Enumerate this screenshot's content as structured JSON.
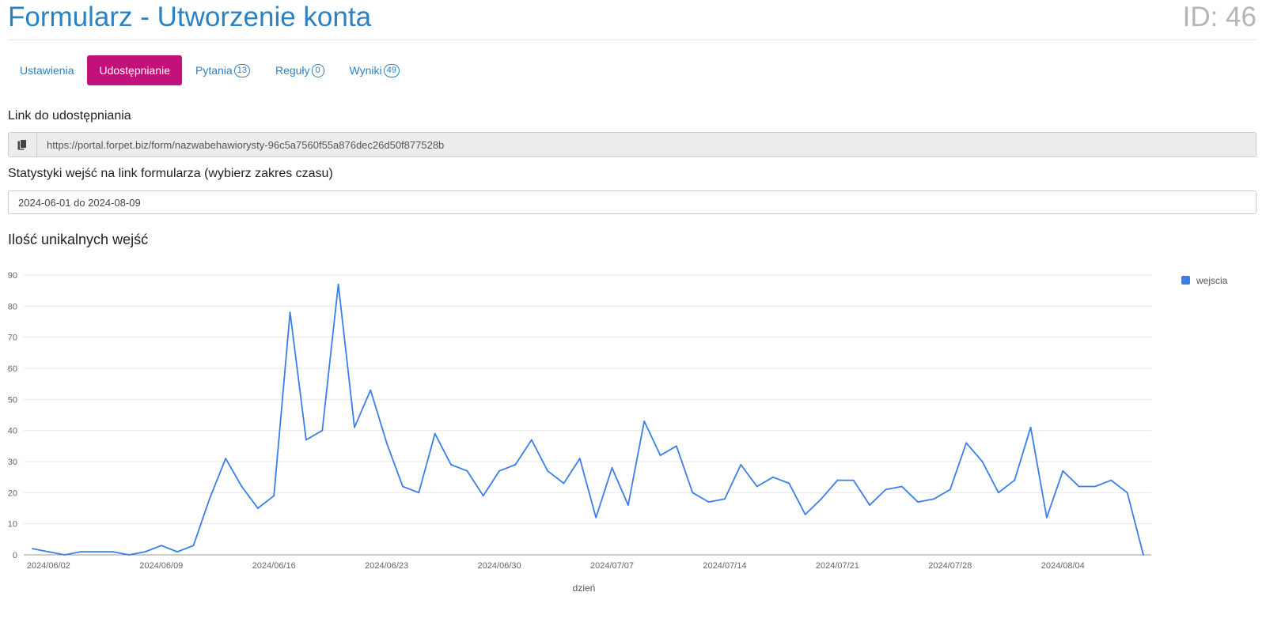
{
  "header": {
    "title": "Formularz - Utworzenie konta",
    "id_label": "ID: 46"
  },
  "tabs": [
    {
      "label": "Ustawienia",
      "badge": null,
      "active": false
    },
    {
      "label": "Udostępnianie",
      "badge": null,
      "active": true
    },
    {
      "label": "Pytania",
      "badge": "13",
      "active": false
    },
    {
      "label": "Reguły",
      "badge": "0",
      "active": false
    },
    {
      "label": "Wyniki",
      "badge": "49",
      "active": false
    }
  ],
  "share": {
    "label": "Link do udostępniania",
    "url": "https://portal.forpet.biz/form/nazwabehawiorysty-96c5a7560f55a876dec26d50f877528b",
    "copy_icon": "copy-icon"
  },
  "stats": {
    "label": "Statystyki wejść na link formularza (wybierz zakres czasu)",
    "date_range": "2024-06-01 do 2024-08-09"
  },
  "chart_title": "Ilość unikalnych wejść",
  "colors": {
    "accent": "#2a82c4",
    "active_tab": "#c2117a",
    "series": "#3a7ee8"
  },
  "chart_data": {
    "type": "line",
    "xlabel": "dzień",
    "ylabel": "",
    "ylim": [
      0,
      90
    ],
    "yticks": [
      0,
      10,
      20,
      30,
      40,
      50,
      60,
      70,
      80,
      90
    ],
    "xtick_labels": [
      "2024/06/02",
      "2024/06/09",
      "2024/06/16",
      "2024/06/23",
      "2024/06/30",
      "2024/07/07",
      "2024/07/14",
      "2024/07/21",
      "2024/07/28",
      "2024/08/04"
    ],
    "legend_position": "top-right",
    "grid": true,
    "x": [
      "2024-06-01",
      "2024-06-02",
      "2024-06-03",
      "2024-06-04",
      "2024-06-05",
      "2024-06-06",
      "2024-06-07",
      "2024-06-08",
      "2024-06-09",
      "2024-06-10",
      "2024-06-11",
      "2024-06-12",
      "2024-06-13",
      "2024-06-14",
      "2024-06-15",
      "2024-06-16",
      "2024-06-17",
      "2024-06-18",
      "2024-06-19",
      "2024-06-20",
      "2024-06-21",
      "2024-06-22",
      "2024-06-23",
      "2024-06-24",
      "2024-06-25",
      "2024-06-26",
      "2024-06-27",
      "2024-06-28",
      "2024-06-29",
      "2024-06-30",
      "2024-07-01",
      "2024-07-02",
      "2024-07-03",
      "2024-07-04",
      "2024-07-05",
      "2024-07-06",
      "2024-07-07",
      "2024-07-08",
      "2024-07-09",
      "2024-07-10",
      "2024-07-11",
      "2024-07-12",
      "2024-07-13",
      "2024-07-14",
      "2024-07-15",
      "2024-07-16",
      "2024-07-17",
      "2024-07-18",
      "2024-07-19",
      "2024-07-20",
      "2024-07-21",
      "2024-07-22",
      "2024-07-23",
      "2024-07-24",
      "2024-07-25",
      "2024-07-26",
      "2024-07-27",
      "2024-07-28",
      "2024-07-29",
      "2024-07-30",
      "2024-07-31",
      "2024-08-01",
      "2024-08-02",
      "2024-08-03",
      "2024-08-04",
      "2024-08-05",
      "2024-08-06",
      "2024-08-07",
      "2024-08-08",
      "2024-08-09"
    ],
    "series": [
      {
        "name": "wejscia",
        "values": [
          2,
          1,
          0,
          1,
          1,
          1,
          0,
          1,
          3,
          1,
          3,
          18,
          31,
          22,
          15,
          19,
          78,
          37,
          40,
          87,
          41,
          53,
          36,
          22,
          20,
          39,
          29,
          27,
          19,
          27,
          29,
          37,
          27,
          23,
          31,
          12,
          28,
          16,
          43,
          32,
          35,
          20,
          17,
          18,
          29,
          22,
          25,
          23,
          13,
          18,
          24,
          24,
          16,
          21,
          22,
          17,
          18,
          21,
          36,
          30,
          20,
          24,
          41,
          12,
          27,
          22,
          22,
          24,
          20,
          0
        ]
      }
    ]
  }
}
